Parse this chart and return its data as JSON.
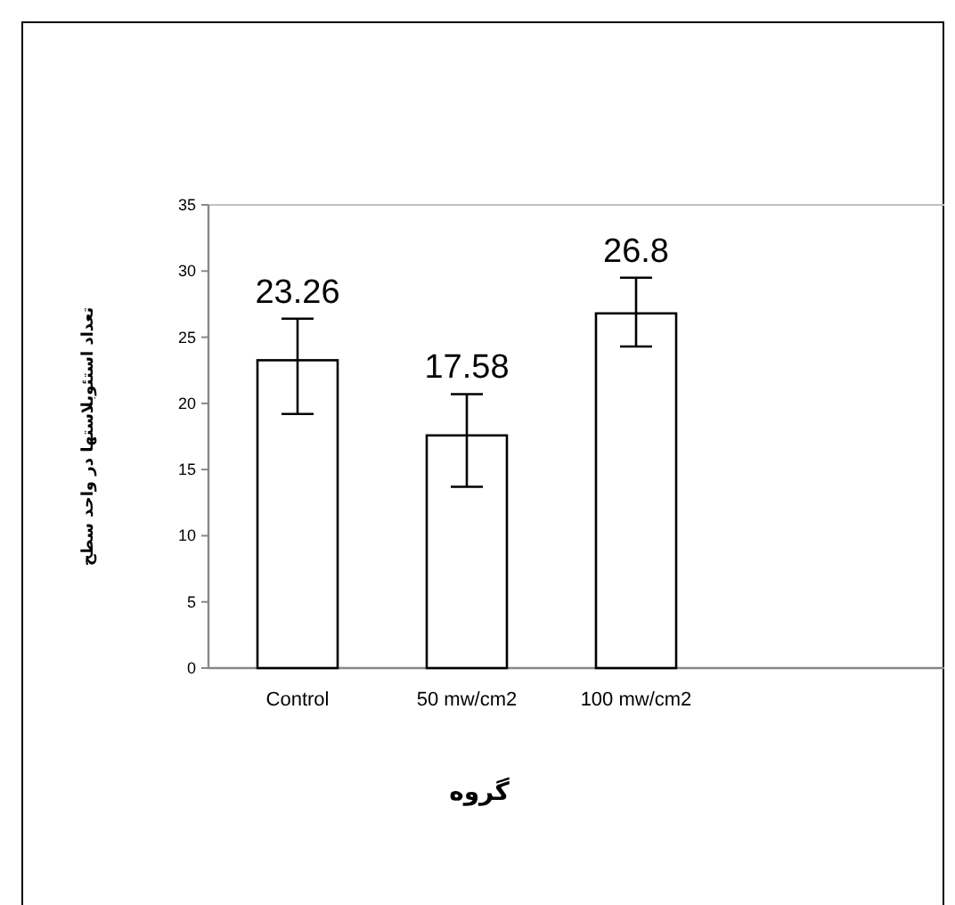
{
  "chart_data": {
    "type": "bar",
    "xlabel": "گروه",
    "ylabel": "تعداد استئوبلاستها در واحد سطح",
    "categories": [
      "Control",
      "50 mw/cm2",
      "100 mw/cm2"
    ],
    "values": [
      23.26,
      17.58,
      26.8
    ],
    "errors": [
      [
        19.2,
        26.4
      ],
      [
        13.7,
        20.7
      ],
      [
        24.3,
        29.5
      ]
    ],
    "color": "#ffffff",
    "ylim": [
      0,
      35
    ],
    "yticks": [
      0,
      5,
      10,
      15,
      20,
      25,
      30,
      35
    ],
    "data_labels": true
  }
}
